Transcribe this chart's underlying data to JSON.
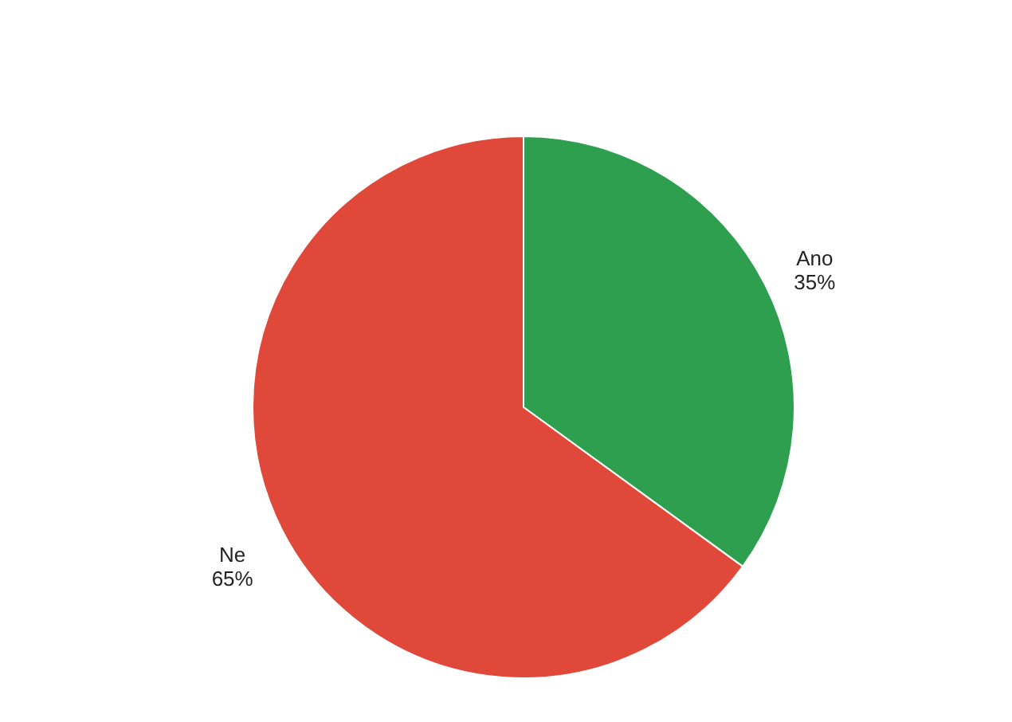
{
  "chart_data": {
    "type": "pie",
    "categories": [
      "Ano",
      "Ne"
    ],
    "values": [
      35,
      65
    ],
    "colors": [
      "#2e9e4f",
      "#e0483a"
    ],
    "value_labels": [
      "35%",
      "65%"
    ],
    "legend": false
  }
}
